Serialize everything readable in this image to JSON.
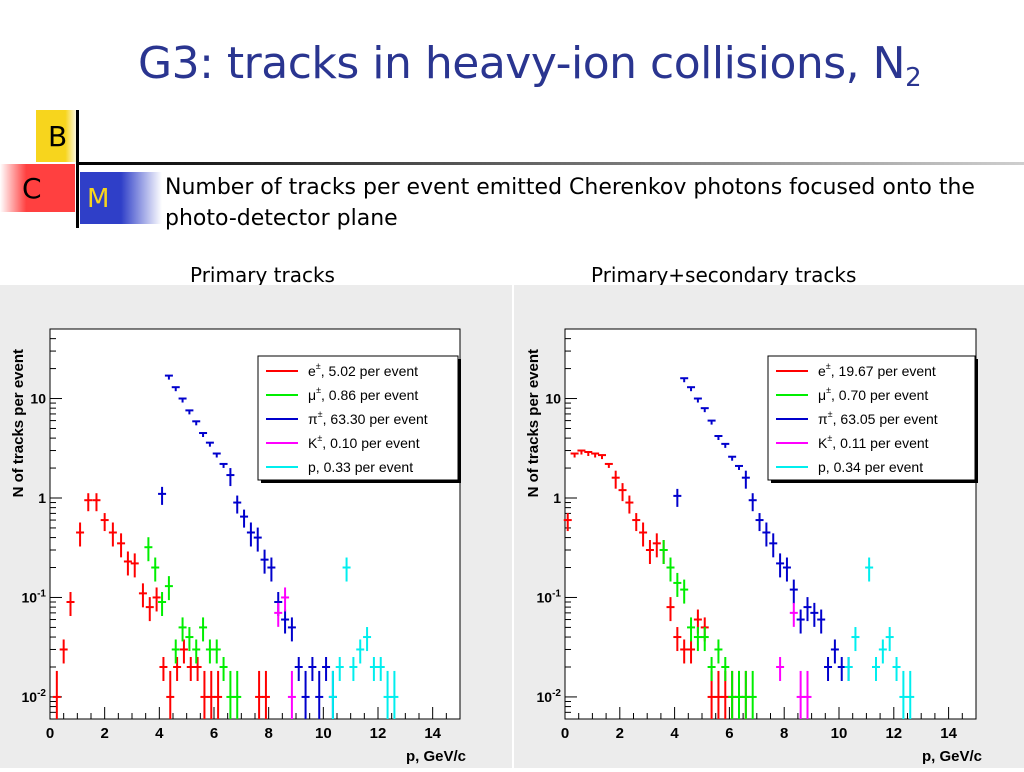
{
  "slide": {
    "title_main": "G3: tracks in heavy-ion collisions, N",
    "title_sub": "2",
    "letters": {
      "b": "B",
      "c": "C",
      "m": "M"
    },
    "description": "Number of tracks per event emitted Cherenkov photons focused onto the photo-detector plane",
    "left_caption": "Primary tracks",
    "right_caption": "Primary+secondary tracks",
    "colors": {
      "title": "#2a3590",
      "b_square": "#f7d51d",
      "c_square": "#ff4040",
      "m_square": "#2f3fc8"
    }
  },
  "chart_data": [
    {
      "type": "scatter",
      "title": "",
      "xlabel": "p, GeV/c",
      "ylabel": "N of tracks per event",
      "xlim": [
        0,
        15
      ],
      "ylim": [
        0.006,
        50
      ],
      "yscale": "log",
      "xticks": [
        0,
        2,
        4,
        6,
        8,
        10,
        12,
        14
      ],
      "yticks": [
        {
          "v": 0.01,
          "base": "10",
          "exp": "-2"
        },
        {
          "v": 0.1,
          "base": "10",
          "exp": "-1"
        },
        {
          "v": 1,
          "base": "1",
          "exp": ""
        },
        {
          "v": 10,
          "base": "10",
          "exp": ""
        }
      ],
      "legend_position": "top-right",
      "grid": false,
      "series": [
        {
          "name": "e±, 5.02 per event",
          "sym": "e",
          "rest": ", 5.02 per event",
          "color": "#ff0000",
          "x": [
            0.25,
            0.5,
            0.75,
            1.1,
            1.4,
            1.7,
            2.0,
            2.3,
            2.6,
            2.85,
            3.1,
            3.4,
            3.65,
            3.9,
            4.15,
            4.4,
            4.65,
            4.9,
            5.15,
            5.4,
            5.65,
            5.9,
            6.15,
            7.65,
            7.9
          ],
          "y": [
            0.01,
            0.03,
            0.09,
            0.45,
            0.95,
            0.95,
            0.6,
            0.45,
            0.35,
            0.23,
            0.22,
            0.11,
            0.08,
            0.1,
            0.02,
            0.01,
            0.02,
            0.03,
            0.02,
            0.02,
            0.01,
            0.01,
            0.01,
            0.01,
            0.01
          ]
        },
        {
          "name": "μ±, 0.86 per event",
          "sym": "μ",
          "rest": ", 0.86 per event",
          "color": "#00ee00",
          "x": [
            3.6,
            3.85,
            4.1,
            4.35,
            4.6,
            4.85,
            5.1,
            5.35,
            5.6,
            5.85,
            6.1,
            6.35,
            6.6,
            6.85
          ],
          "y": [
            0.32,
            0.2,
            0.09,
            0.13,
            0.03,
            0.05,
            0.04,
            0.03,
            0.05,
            0.03,
            0.03,
            0.02,
            0.01,
            0.01
          ]
        },
        {
          "name": "π±, 63.30 per event",
          "sym": "π",
          "rest": ", 63.30 per event",
          "color": "#0000cc",
          "x": [
            4.1,
            4.35,
            4.6,
            4.85,
            5.1,
            5.35,
            5.6,
            5.85,
            6.1,
            6.35,
            6.6,
            6.85,
            7.1,
            7.35,
            7.6,
            7.85,
            8.1,
            8.35,
            8.6,
            8.85,
            9.1,
            9.35,
            9.6,
            9.85,
            10.1,
            10.35
          ],
          "y": [
            1.1,
            17,
            13,
            10,
            7.6,
            5.9,
            4.5,
            3.6,
            2.8,
            2.2,
            1.7,
            0.9,
            0.65,
            0.45,
            0.4,
            0.24,
            0.2,
            0.09,
            0.06,
            0.05,
            0.02,
            0.01,
            0.02,
            0.01,
            0.02,
            0.01
          ]
        },
        {
          "name": "K±, 0.10 per event",
          "sym": "K",
          "rest": ", 0.10 per event",
          "color": "#ff00ff",
          "x": [
            8.35,
            8.6,
            8.85
          ],
          "y": [
            0.07,
            0.1,
            0.01
          ]
        },
        {
          "name": "p, 0.33 per event",
          "sym": "p",
          "rest": ", 0.33 per event",
          "color": "#00eeee",
          "x": [
            10.35,
            10.6,
            10.85,
            11.1,
            11.35,
            11.6,
            11.85,
            12.1,
            12.35,
            12.6
          ],
          "y": [
            0.01,
            0.02,
            0.2,
            0.02,
            0.03,
            0.04,
            0.02,
            0.02,
            0.01,
            0.01
          ]
        }
      ]
    },
    {
      "type": "scatter",
      "title": "",
      "xlabel": "p, GeV/c",
      "ylabel": "N of tracks per event",
      "xlim": [
        0,
        15
      ],
      "ylim": [
        0.006,
        50
      ],
      "yscale": "log",
      "xticks": [
        0,
        2,
        4,
        6,
        8,
        10,
        12,
        14
      ],
      "yticks": [
        {
          "v": 0.01,
          "base": "10",
          "exp": "-2"
        },
        {
          "v": 0.1,
          "base": "10",
          "exp": "-1"
        },
        {
          "v": 1,
          "base": "1",
          "exp": ""
        },
        {
          "v": 10,
          "base": "10",
          "exp": ""
        }
      ],
      "legend_position": "top-right",
      "grid": false,
      "series": [
        {
          "name": "e±, 19.67 per event",
          "sym": "e",
          "rest": ", 19.67 per event",
          "color": "#ff0000",
          "x": [
            0.1,
            0.35,
            0.6,
            0.85,
            1.1,
            1.35,
            1.6,
            1.85,
            2.1,
            2.35,
            2.6,
            2.85,
            3.1,
            3.35,
            3.6,
            3.85,
            4.1,
            4.35,
            4.6,
            4.85,
            5.1,
            5.35,
            5.6,
            5.85,
            6.1,
            6.35,
            6.6
          ],
          "y": [
            0.6,
            2.8,
            3.0,
            2.9,
            2.8,
            2.7,
            2.2,
            1.6,
            1.2,
            0.9,
            0.6,
            0.45,
            0.3,
            0.35,
            0.3,
            0.08,
            0.04,
            0.03,
            0.03,
            0.06,
            0.05,
            0.01,
            0.01,
            0.01,
            0.01,
            0.01,
            0.01
          ]
        },
        {
          "name": "μ±, 0.70 per event",
          "sym": "μ",
          "rest": ", 0.70 per event",
          "color": "#00ee00",
          "x": [
            3.6,
            3.85,
            4.1,
            4.35,
            4.6,
            4.85,
            5.1,
            5.35,
            5.6,
            5.85,
            6.1,
            6.35,
            6.6,
            6.85
          ],
          "y": [
            0.3,
            0.2,
            0.14,
            0.12,
            0.05,
            0.04,
            0.04,
            0.02,
            0.03,
            0.02,
            0.01,
            0.01,
            0.01,
            0.01
          ]
        },
        {
          "name": "π±, 63.05 per event",
          "sym": "π",
          "rest": ", 63.05 per event",
          "color": "#0000cc",
          "x": [
            4.1,
            4.35,
            4.6,
            4.85,
            5.1,
            5.35,
            5.6,
            5.85,
            6.1,
            6.35,
            6.6,
            6.85,
            7.1,
            7.35,
            7.6,
            7.85,
            8.1,
            8.35,
            8.6,
            8.85,
            9.1,
            9.35,
            9.6,
            9.85,
            10.1,
            10.35
          ],
          "y": [
            1.05,
            16,
            13,
            10,
            8,
            6,
            4.2,
            3.5,
            2.6,
            2.1,
            1.6,
            0.95,
            0.6,
            0.45,
            0.35,
            0.22,
            0.2,
            0.12,
            0.06,
            0.08,
            0.07,
            0.06,
            0.02,
            0.03,
            0.02,
            0.02
          ]
        },
        {
          "name": "K±, 0.11 per event",
          "sym": "K",
          "rest": ", 0.11 per event",
          "color": "#ff00ff",
          "x": [
            7.85,
            8.35,
            8.6,
            8.85
          ],
          "y": [
            0.02,
            0.07,
            0.01,
            0.01
          ]
        },
        {
          "name": "p, 0.34 per event",
          "sym": "p",
          "rest": ", 0.34 per event",
          "color": "#00eeee",
          "x": [
            10.35,
            10.6,
            11.1,
            11.35,
            11.6,
            11.85,
            12.1,
            12.35,
            12.6
          ],
          "y": [
            0.02,
            0.04,
            0.2,
            0.02,
            0.03,
            0.04,
            0.02,
            0.01,
            0.01
          ]
        }
      ]
    }
  ]
}
